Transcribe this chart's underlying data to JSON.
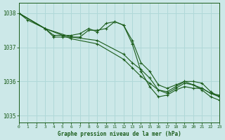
{
  "title": "Graphe pression niveau de la mer (hPa)",
  "bg_color": "#cce8e8",
  "grid_color": "#b0d8d8",
  "line_color": "#1a5c1a",
  "x_min": 0,
  "x_max": 23,
  "y_min": 1034.8,
  "y_max": 1038.3,
  "y_ticks": [
    1035,
    1036,
    1037,
    1038
  ],
  "x_ticks": [
    0,
    1,
    2,
    3,
    4,
    5,
    6,
    7,
    8,
    9,
    10,
    11,
    12,
    13,
    14,
    15,
    16,
    17,
    18,
    19,
    20,
    21,
    22,
    23
  ],
  "series": [
    {
      "x": [
        0,
        1,
        3,
        4,
        5,
        6,
        7,
        8,
        9,
        10,
        11,
        12,
        13,
        14,
        15,
        16,
        17,
        18,
        19,
        20,
        21,
        22,
        23
      ],
      "y": [
        1038.0,
        1037.8,
        1037.55,
        1037.35,
        1037.35,
        1037.35,
        1037.4,
        1037.55,
        1037.45,
        1037.7,
        1037.75,
        1037.65,
        1037.2,
        1036.55,
        1036.3,
        1035.9,
        1035.8,
        1035.9,
        1036.0,
        1035.9,
        1035.8,
        1035.65,
        1035.6
      ]
    },
    {
      "x": [
        0,
        3,
        4,
        5,
        6,
        7,
        8,
        9,
        10,
        11,
        12,
        13,
        14,
        15,
        16,
        17,
        18,
        19,
        20,
        21,
        22,
        23
      ],
      "y": [
        1038.0,
        1037.55,
        1037.3,
        1037.3,
        1037.3,
        1037.3,
        1037.5,
        1037.5,
        1037.55,
        1037.75,
        1037.65,
        1037.1,
        1036.3,
        1035.85,
        1035.55,
        1035.6,
        1035.75,
        1035.85,
        1035.8,
        1035.8,
        1035.65,
        1035.55
      ]
    },
    {
      "x": [
        0,
        3,
        6,
        9,
        12,
        13,
        14,
        15,
        16,
        17,
        18,
        19,
        20,
        21,
        22,
        23
      ],
      "y": [
        1038.0,
        1037.55,
        1037.3,
        1037.2,
        1036.8,
        1036.55,
        1036.35,
        1036.1,
        1035.75,
        1035.7,
        1035.85,
        1036.0,
        1036.0,
        1035.95,
        1035.7,
        1035.55
      ]
    },
    {
      "x": [
        0,
        3,
        6,
        9,
        12,
        13,
        14,
        15,
        16,
        17,
        18,
        19,
        20,
        21,
        22,
        23
      ],
      "y": [
        1038.0,
        1037.55,
        1037.25,
        1037.1,
        1036.65,
        1036.4,
        1036.15,
        1035.95,
        1035.75,
        1035.65,
        1035.8,
        1035.95,
        1035.9,
        1035.75,
        1035.55,
        1035.45
      ]
    }
  ]
}
